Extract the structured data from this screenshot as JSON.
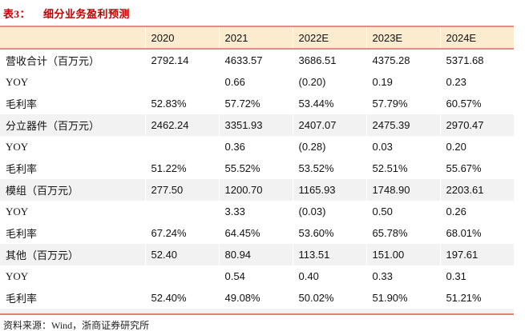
{
  "title": {
    "prefix": "表3：",
    "caption": "细分业务盈利预测"
  },
  "table": {
    "columns": [
      "",
      "2020",
      "2021",
      "2022E",
      "2023E",
      "2024E"
    ],
    "rows": [
      {
        "label": "营收合计（百万元）",
        "values": [
          "2792.14",
          "4633.57",
          "3686.51",
          "4375.28",
          "5371.68"
        ]
      },
      {
        "label": "YOY",
        "values": [
          "",
          "0.66",
          "(0.20)",
          "0.19",
          "0.23"
        ]
      },
      {
        "label": "毛利率",
        "values": [
          "52.83%",
          "57.72%",
          "53.44%",
          "57.79%",
          "60.57%"
        ]
      },
      {
        "label": "分立器件（百万元）",
        "values": [
          "2462.24",
          "3351.93",
          "2407.07",
          "2475.39",
          "2970.47"
        ]
      },
      {
        "label": "YOY",
        "values": [
          "",
          "0.36",
          "(0.28)",
          "0.03",
          "0.20"
        ]
      },
      {
        "label": "毛利率",
        "values": [
          "51.22%",
          "55.52%",
          "53.52%",
          "52.51%",
          "55.67%"
        ]
      },
      {
        "label": "模组（百万元）",
        "values": [
          "277.50",
          "1200.70",
          "1165.93",
          "1748.90",
          "2203.61"
        ]
      },
      {
        "label": "YOY",
        "values": [
          "",
          "3.33",
          "(0.03)",
          "0.50",
          "0.26"
        ]
      },
      {
        "label": "毛利率",
        "values": [
          "67.24%",
          "64.45%",
          "53.60%",
          "65.78%",
          "68.01%"
        ]
      },
      {
        "label": "其他（百万元）",
        "values": [
          "52.40",
          "80.94",
          "113.51",
          "151.00",
          "197.61"
        ]
      },
      {
        "label": "YOY",
        "values": [
          "",
          "0.54",
          "0.40",
          "0.33",
          "0.31"
        ]
      },
      {
        "label": "毛利率",
        "values": [
          "52.40%",
          "49.08%",
          "50.02%",
          "51.90%",
          "51.21%"
        ]
      }
    ]
  },
  "footer": {
    "text": "资料来源：Wind，浙商证券研究所"
  },
  "colors": {
    "title_red": "#c00000",
    "header_bg": "#fbecd0",
    "accent_border": "#df8f88",
    "shaded_row_bg": "#f2f2f2"
  }
}
